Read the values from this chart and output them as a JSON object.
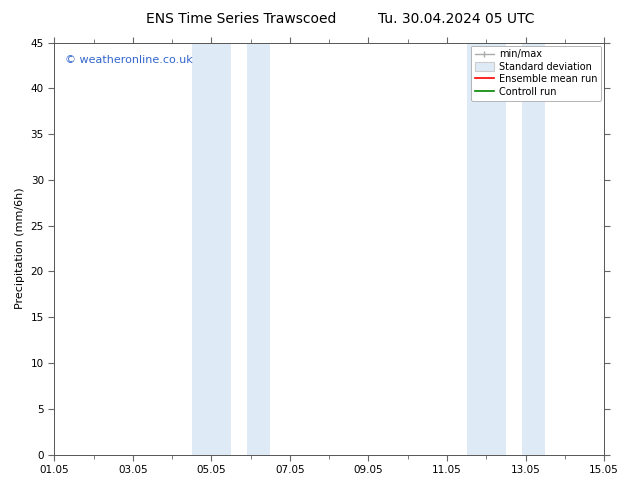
{
  "title_left": "ENS Time Series Trawscoed",
  "title_right": "Tu. 30.04.2024 05 UTC",
  "ylabel": "Precipitation (mm/6h)",
  "ylim": [
    0,
    45
  ],
  "yticks": [
    0,
    5,
    10,
    15,
    20,
    25,
    30,
    35,
    40,
    45
  ],
  "xlim": [
    0,
    14
  ],
  "x_tick_labels": [
    "01.05",
    "03.05",
    "05.05",
    "07.05",
    "09.05",
    "11.05",
    "13.05",
    "15.05"
  ],
  "x_tick_positions": [
    0,
    2,
    4,
    6,
    8,
    10,
    12,
    14
  ],
  "shaded_bands": [
    {
      "x_start": 3.5,
      "x_end": 4.5
    },
    {
      "x_start": 4.9,
      "x_end": 5.5
    },
    {
      "x_start": 10.5,
      "x_end": 11.5
    },
    {
      "x_start": 11.9,
      "x_end": 12.5
    }
  ],
  "shade_color": "#deeaf5",
  "background_color": "#ffffff",
  "watermark": "© weatheronline.co.uk",
  "watermark_color": "#3366cc",
  "legend_labels": [
    "min/max",
    "Standard deviation",
    "Ensemble mean run",
    "Controll run"
  ],
  "legend_colors": [
    "#aaaaaa",
    "#cccccc",
    "#ff0000",
    "#008800"
  ],
  "title_fontsize": 10,
  "axis_fontsize": 8,
  "tick_fontsize": 7.5,
  "watermark_fontsize": 8
}
